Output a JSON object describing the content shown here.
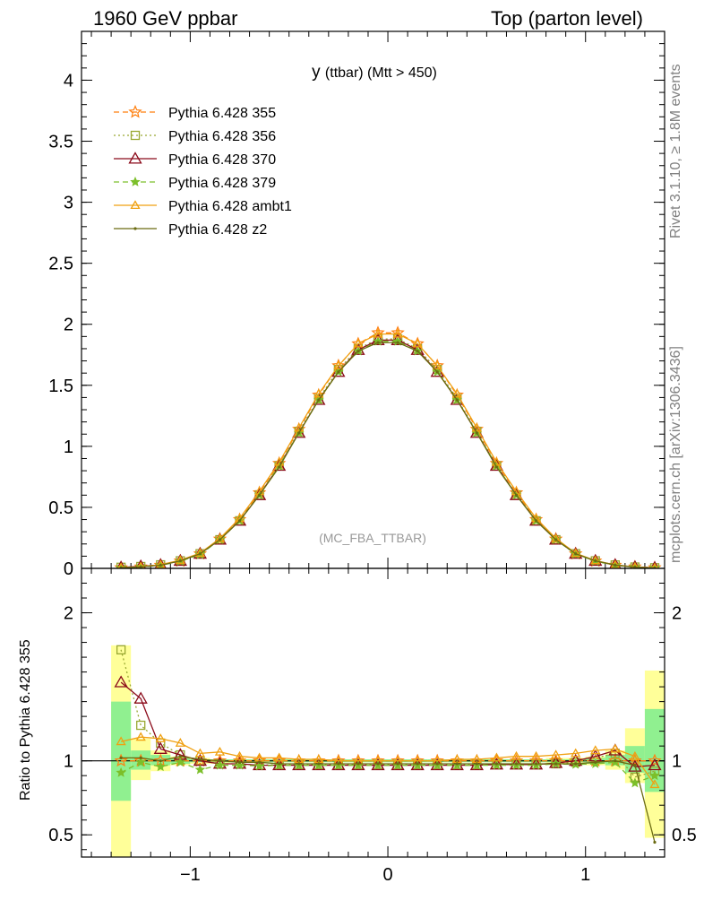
{
  "header": {
    "left": "1960 GeV ppbar",
    "right": "Top (parton level)"
  },
  "side_labels": {
    "rivet": "Rivet 3.1.10, ≥ 1.8M events",
    "mcplots": "mcplots.cern.ch [arXiv:1306.3436]"
  },
  "ratio_ylabel": "Ratio to Pythia 6.428 355",
  "chart_data": [
    {
      "type": "line",
      "title": "y",
      "title_suffix": "(ttbar) (Mtt > 450)",
      "watermark": "(MC_FBA_TTBAR)",
      "xlim": [
        -1.55,
        1.4
      ],
      "ylim": [
        0,
        4.4
      ],
      "yticks": [
        0,
        0.5,
        1,
        1.5,
        2,
        2.5,
        3,
        3.5,
        4
      ],
      "ytick_labels": [
        "0",
        "0.5",
        "1",
        "1.5",
        "2",
        "2.5",
        "3",
        "3.5",
        "4"
      ],
      "x": [
        -1.35,
        -1.25,
        -1.15,
        -1.05,
        -0.95,
        -0.85,
        -0.75,
        -0.65,
        -0.55,
        -0.45,
        -0.35,
        -0.25,
        -0.15,
        -0.05,
        0.05,
        0.15,
        0.25,
        0.35,
        0.45,
        0.55,
        0.65,
        0.75,
        0.85,
        0.95,
        1.05,
        1.15,
        1.25,
        1.35
      ],
      "legend_position": "top-left",
      "series": [
        {
          "name": "Pythia 6.428 355",
          "color": "#ff7f0e",
          "marker": "star",
          "dash": "6,4",
          "values": [
            0.005,
            0.012,
            0.026,
            0.06,
            0.12,
            0.24,
            0.4,
            0.62,
            0.86,
            1.14,
            1.42,
            1.66,
            1.84,
            1.93,
            1.93,
            1.84,
            1.66,
            1.42,
            1.14,
            0.86,
            0.62,
            0.4,
            0.24,
            0.12,
            0.06,
            0.026,
            0.012,
            0.005
          ]
        },
        {
          "name": "Pythia 6.428 356",
          "color": "#99a832",
          "marker": "square",
          "dash": "2,3",
          "values": [
            0.009,
            0.015,
            0.029,
            0.062,
            0.12,
            0.235,
            0.39,
            0.6,
            0.84,
            1.12,
            1.39,
            1.63,
            1.8,
            1.88,
            1.88,
            1.8,
            1.63,
            1.39,
            1.12,
            0.84,
            0.6,
            0.39,
            0.235,
            0.12,
            0.062,
            0.028,
            0.011,
            0.005
          ]
        },
        {
          "name": "Pythia 6.428 370",
          "color": "#8b0a1a",
          "marker": "triangle",
          "dash": "",
          "values": [
            0.008,
            0.017,
            0.028,
            0.062,
            0.12,
            0.235,
            0.39,
            0.6,
            0.84,
            1.11,
            1.38,
            1.61,
            1.79,
            1.87,
            1.87,
            1.79,
            1.61,
            1.38,
            1.11,
            0.84,
            0.6,
            0.39,
            0.235,
            0.12,
            0.062,
            0.028,
            0.011,
            0.005
          ]
        },
        {
          "name": "Pythia 6.428 379",
          "color": "#7cbf2a",
          "marker": "smallstar",
          "dash": "6,4",
          "values": [
            0.0046,
            0.012,
            0.025,
            0.059,
            0.113,
            0.235,
            0.39,
            0.6,
            0.84,
            1.11,
            1.38,
            1.61,
            1.78,
            1.86,
            1.86,
            1.78,
            1.61,
            1.38,
            1.11,
            0.84,
            0.6,
            0.39,
            0.235,
            0.117,
            0.059,
            0.025,
            0.01,
            0.0045
          ]
        },
        {
          "name": "Pythia 6.428 ambt1",
          "color": "#f0a010",
          "marker": "smalltriangle",
          "dash": "",
          "values": [
            0.0057,
            0.014,
            0.03,
            0.067,
            0.125,
            0.245,
            0.41,
            0.63,
            0.87,
            1.15,
            1.43,
            1.66,
            1.84,
            1.92,
            1.92,
            1.84,
            1.66,
            1.43,
            1.15,
            0.87,
            0.63,
            0.41,
            0.245,
            0.124,
            0.064,
            0.028,
            0.011,
            0.0042
          ]
        },
        {
          "name": "Pythia 6.428 z2",
          "color": "#6b6b12",
          "marker": "dot",
          "dash": "",
          "values": [
            0.005,
            0.012,
            0.026,
            0.062,
            0.12,
            0.235,
            0.39,
            0.6,
            0.83,
            1.11,
            1.38,
            1.61,
            1.78,
            1.85,
            1.85,
            1.78,
            1.61,
            1.38,
            1.11,
            0.83,
            0.6,
            0.39,
            0.235,
            0.12,
            0.062,
            0.027,
            0.01,
            0.002
          ]
        }
      ]
    },
    {
      "type": "line",
      "ylabel": "Ratio to Pythia 6.428 355",
      "xlim": [
        -1.55,
        1.4
      ],
      "ylim": [
        0.35,
        2.3
      ],
      "xticks": [
        -1,
        0,
        1
      ],
      "xtick_labels": [
        "−1",
        "0",
        "1"
      ],
      "yticks": [
        0.5,
        1,
        2
      ],
      "ytick_labels": [
        "0.5",
        "1",
        "2"
      ],
      "reference_line": 1,
      "x": [
        -1.35,
        -1.25,
        -1.15,
        -1.05,
        -0.95,
        -0.85,
        -0.75,
        -0.65,
        -0.55,
        -0.45,
        -0.35,
        -0.25,
        -0.15,
        -0.05,
        0.05,
        0.15,
        0.25,
        0.35,
        0.45,
        0.55,
        0.65,
        0.75,
        0.85,
        0.95,
        1.05,
        1.15,
        1.25,
        1.35
      ],
      "bands": {
        "inner_color": "#90f090",
        "outer_color": "#ffff99",
        "inner_low": [
          0.73,
          0.94,
          0.97,
          0.98,
          0.99,
          0.99,
          0.99,
          0.99,
          0.99,
          0.99,
          0.99,
          0.99,
          0.99,
          0.99,
          0.99,
          0.99,
          0.99,
          0.99,
          0.99,
          0.99,
          0.99,
          0.99,
          0.99,
          0.99,
          0.98,
          0.97,
          0.92,
          0.79
        ],
        "inner_high": [
          1.4,
          1.07,
          1.04,
          1.02,
          1.01,
          1.01,
          1.01,
          1.01,
          1.01,
          1.01,
          1.01,
          1.01,
          1.01,
          1.01,
          1.01,
          1.01,
          1.01,
          1.01,
          1.01,
          1.01,
          1.01,
          1.01,
          1.01,
          1.01,
          1.02,
          1.04,
          1.1,
          1.35
        ],
        "outer_low": [
          0.3,
          0.87,
          0.93,
          0.97,
          0.98,
          0.98,
          0.99,
          0.99,
          0.99,
          0.99,
          0.99,
          0.99,
          0.99,
          0.99,
          0.99,
          0.99,
          0.99,
          0.99,
          0.99,
          0.99,
          0.99,
          0.99,
          0.98,
          0.98,
          0.97,
          0.94,
          0.85,
          0.48
        ],
        "outer_high": [
          1.78,
          1.15,
          1.07,
          1.03,
          1.02,
          1.01,
          1.01,
          1.01,
          1.01,
          1.01,
          1.01,
          1.01,
          1.01,
          1.01,
          1.01,
          1.01,
          1.01,
          1.01,
          1.01,
          1.01,
          1.01,
          1.01,
          1.02,
          1.02,
          1.03,
          1.07,
          1.22,
          1.61
        ]
      },
      "series": [
        {
          "name": "Pythia 6.428 355",
          "color": "#ff7f0e",
          "marker": "star",
          "dash": "6,4",
          "values": [
            1,
            1,
            1,
            1,
            1,
            1,
            1,
            1,
            1,
            1,
            1,
            1,
            1,
            1,
            1,
            1,
            1,
            1,
            1,
            1,
            1,
            1,
            1,
            1,
            1,
            1,
            1,
            1
          ]
        },
        {
          "name": "Pythia 6.428 356",
          "color": "#99a832",
          "marker": "square",
          "dash": "2,3",
          "values": [
            1.75,
            1.24,
            1.12,
            1.04,
            1.0,
            0.98,
            0.98,
            0.97,
            0.975,
            0.975,
            0.975,
            0.975,
            0.975,
            0.975,
            0.975,
            0.975,
            0.975,
            0.975,
            0.975,
            0.975,
            0.975,
            0.975,
            0.98,
            0.99,
            1.02,
            1.05,
            0.89,
            0.93
          ]
        },
        {
          "name": "Pythia 6.428 370",
          "color": "#8b0a1a",
          "marker": "triangle",
          "dash": "",
          "values": [
            1.53,
            1.42,
            1.08,
            1.04,
            1.0,
            0.98,
            0.98,
            0.97,
            0.97,
            0.97,
            0.97,
            0.97,
            0.97,
            0.97,
            0.97,
            0.97,
            0.97,
            0.97,
            0.97,
            0.975,
            0.975,
            0.975,
            0.985,
            1.0,
            1.03,
            1.07,
            0.96,
            0.97
          ]
        },
        {
          "name": "Pythia 6.428 379",
          "color": "#7cbf2a",
          "marker": "smallstar",
          "dash": "6,4",
          "values": [
            0.92,
            0.99,
            0.96,
            0.99,
            0.94,
            0.97,
            0.97,
            0.965,
            0.97,
            0.97,
            0.97,
            0.97,
            0.97,
            0.97,
            0.97,
            0.97,
            0.97,
            0.97,
            0.97,
            0.97,
            0.97,
            0.97,
            0.98,
            0.975,
            0.98,
            0.99,
            0.85,
            0.9
          ]
        },
        {
          "name": "Pythia 6.428 ambt1",
          "color": "#f0a010",
          "marker": "smalltriangle",
          "dash": "",
          "values": [
            1.13,
            1.16,
            1.15,
            1.12,
            1.05,
            1.06,
            1.03,
            1.02,
            1.02,
            1.01,
            1.01,
            1.0,
            1.0,
            1.0,
            1.0,
            1.0,
            1.0,
            1.01,
            1.01,
            1.02,
            1.03,
            1.03,
            1.04,
            1.05,
            1.07,
            1.08,
            1.03,
            0.84
          ]
        },
        {
          "name": "Pythia 6.428 z2",
          "color": "#6b6b12",
          "marker": "dot",
          "dash": "",
          "values": [
            1.02,
            1.02,
            1.0,
            1.03,
            1.01,
            1.0,
            0.99,
            0.99,
            0.98,
            0.98,
            0.98,
            0.98,
            0.98,
            0.98,
            0.98,
            0.98,
            0.98,
            0.98,
            0.98,
            0.98,
            0.98,
            0.98,
            0.98,
            0.98,
            0.99,
            1.0,
            0.97,
            0.45
          ]
        }
      ]
    }
  ]
}
